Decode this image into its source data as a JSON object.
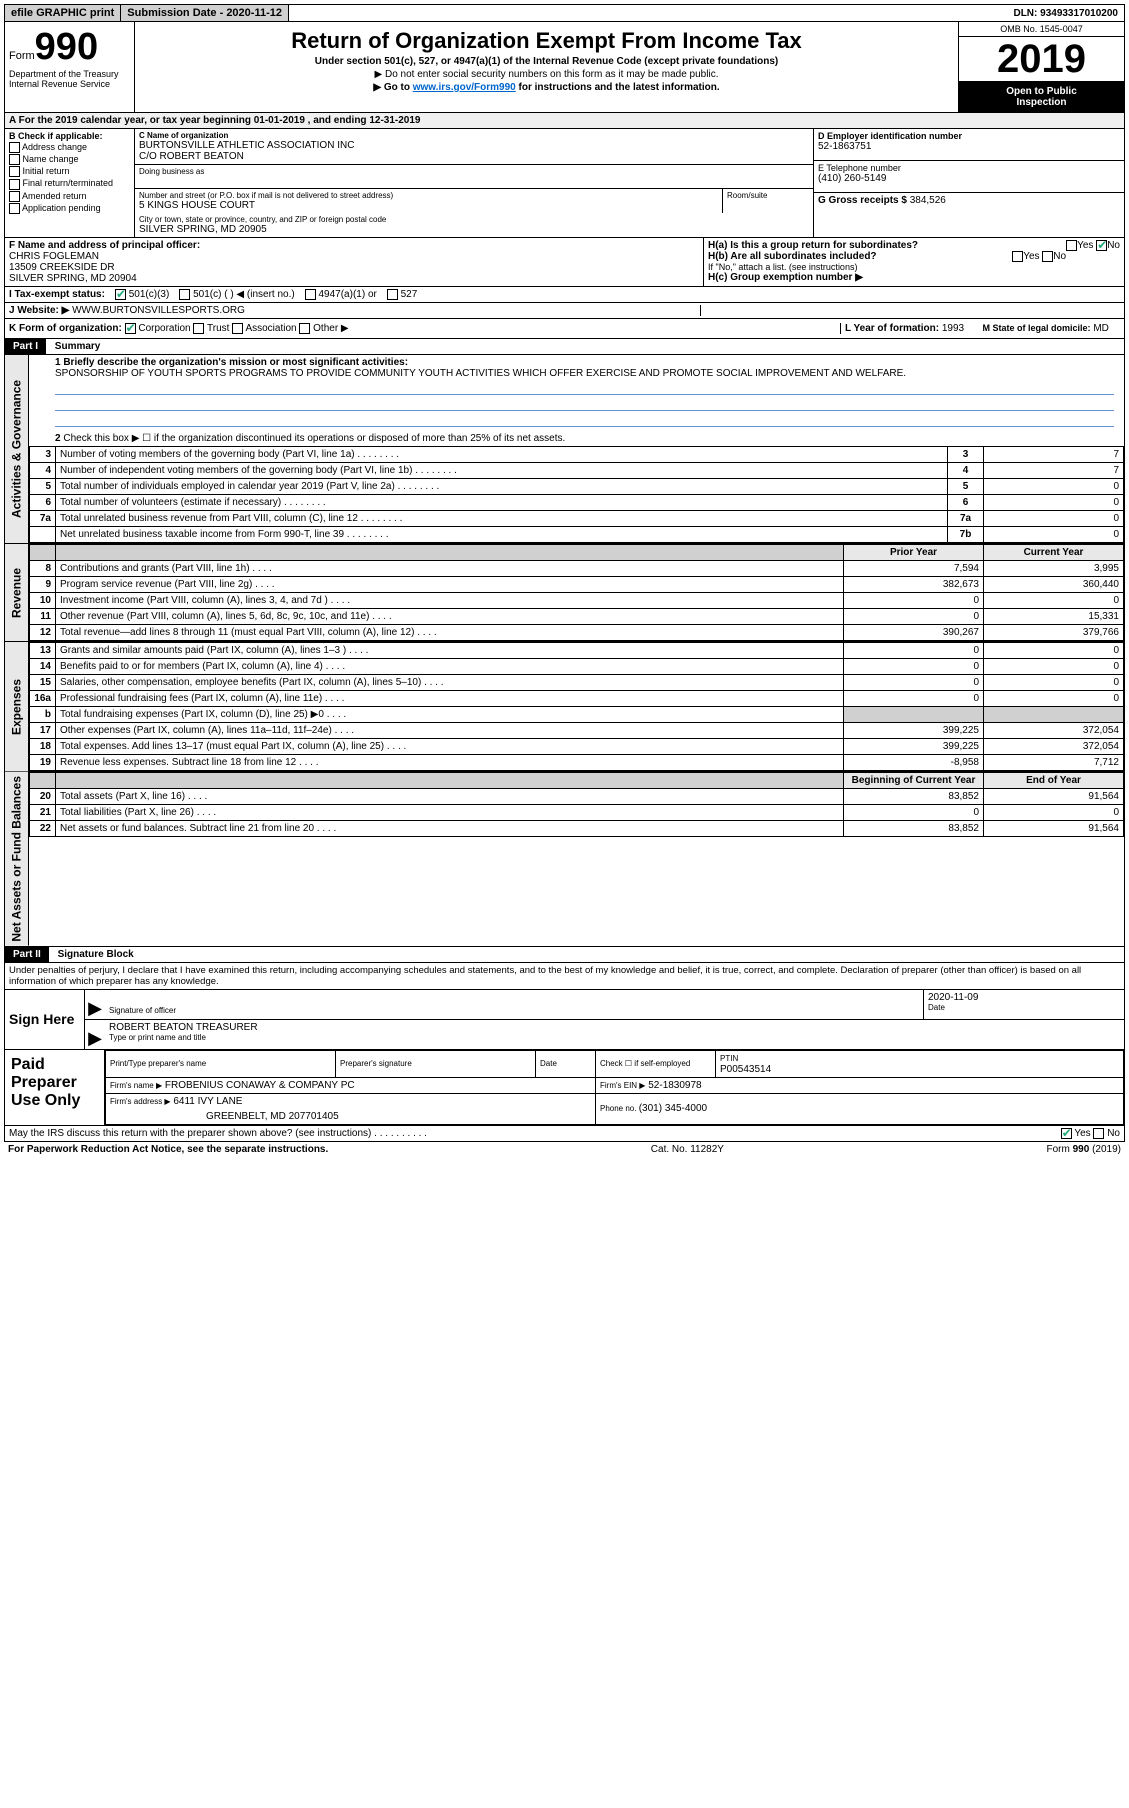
{
  "topbar": {
    "efile": "efile GRAPHIC print",
    "submission_label": "Submission Date - 2020-11-12",
    "dln": "DLN: 93493317010200"
  },
  "header": {
    "form_prefix": "Form",
    "form_number": "990",
    "dept": "Department of the Treasury",
    "irs": "Internal Revenue Service",
    "title": "Return of Organization Exempt From Income Tax",
    "subtitle": "Under section 501(c), 527, or 4947(a)(1) of the Internal Revenue Code (except private foundations)",
    "note1": "Do not enter social security numbers on this form as it may be made public.",
    "note2_pre": "Go to ",
    "note2_link": "www.irs.gov/Form990",
    "note2_post": " for instructions and the latest information.",
    "omb": "OMB No. 1545-0047",
    "year": "2019",
    "inspect1": "Open to Public",
    "inspect2": "Inspection"
  },
  "rowA": "A For the 2019 calendar year, or tax year beginning 01-01-2019   , and ending 12-31-2019",
  "colB": {
    "label": "B Check if applicable:",
    "addr": "Address change",
    "name": "Name change",
    "init": "Initial return",
    "final": "Final return/terminated",
    "amend": "Amended return",
    "app": "Application pending"
  },
  "colC": {
    "name_label": "C Name of organization",
    "name1": "BURTONSVILLE ATHLETIC ASSOCIATION INC",
    "name2": "C/O ROBERT BEATON",
    "dba_label": "Doing business as",
    "addr_label": "Number and street (or P.O. box if mail is not delivered to street address)",
    "addr": "5 KINGS HOUSE COURT",
    "room_label": "Room/suite",
    "city_label": "City or town, state or province, country, and ZIP or foreign postal code",
    "city": "SILVER SPRING, MD  20905"
  },
  "colDE": {
    "D_label": "D Employer identification number",
    "D_val": "52-1863751",
    "E_label": "E Telephone number",
    "E_val": "(410) 260-5149",
    "G_label": "G Gross receipts $ ",
    "G_val": "384,526"
  },
  "F": {
    "label": "F  Name and address of principal officer:",
    "line1": "CHRIS FOGLEMAN",
    "line2": "13509 CREEKSIDE DR",
    "line3": "SILVER SPRING, MD  20904"
  },
  "H": {
    "Ha": "H(a)  Is this a group return for subordinates?",
    "Hb": "H(b)  Are all subordinates included?",
    "Hb_note": "If \"No,\" attach a list. (see instructions)",
    "Hc": "H(c)  Group exemption number ▶",
    "yes": "Yes",
    "no": "No"
  },
  "I": {
    "label": "I  Tax-exempt status:",
    "c3": "501(c)(3)",
    "c": "501(c) (  ) ◀ (insert no.)",
    "a1": "4947(a)(1) or",
    "s527": "527"
  },
  "J": {
    "label": "J  Website: ▶",
    "val": "WWW.BURTONSVILLESPORTS.ORG"
  },
  "K": {
    "label": "K Form of organization:",
    "corp": "Corporation",
    "trust": "Trust",
    "assoc": "Association",
    "other": "Other ▶",
    "L_label": "L Year of formation: ",
    "L_val": "1993",
    "M_label": "M State of legal domicile:",
    "M_val": "MD"
  },
  "part1": {
    "part": "Part I",
    "title": "Summary",
    "line1_label": "1  Briefly describe the organization's mission or most significant activities:",
    "line1_text": "SPONSORSHIP OF YOUTH SPORTS PROGRAMS TO PROVIDE COMMUNITY YOUTH ACTIVITIES WHICH OFFER EXERCISE AND PROMOTE SOCIAL IMPROVEMENT AND WELFARE.",
    "line2": "Check this box ▶ ☐  if the organization discontinued its operations or disposed of more than 25% of its net assets.",
    "tabs": {
      "ag": "Activities & Governance",
      "rev": "Revenue",
      "exp": "Expenses",
      "net": "Net Assets or Fund Balances"
    },
    "ag_rows": [
      {
        "n": "3",
        "label": "Number of voting members of the governing body (Part VI, line 1a)",
        "box": "3",
        "v": "7"
      },
      {
        "n": "4",
        "label": "Number of independent voting members of the governing body (Part VI, line 1b)",
        "box": "4",
        "v": "7"
      },
      {
        "n": "5",
        "label": "Total number of individuals employed in calendar year 2019 (Part V, line 2a)",
        "box": "5",
        "v": "0"
      },
      {
        "n": "6",
        "label": "Total number of volunteers (estimate if necessary)",
        "box": "6",
        "v": "0"
      },
      {
        "n": "7a",
        "label": "Total unrelated business revenue from Part VIII, column (C), line 12",
        "box": "7a",
        "v": "0"
      },
      {
        "n": "",
        "label": "Net unrelated business taxable income from Form 990-T, line 39",
        "box": "7b",
        "v": "0"
      }
    ],
    "prior_hdr": "Prior Year",
    "curr_hdr": "Current Year",
    "rev_rows": [
      {
        "n": "8",
        "label": "Contributions and grants (Part VIII, line 1h)",
        "p": "7,594",
        "c": "3,995"
      },
      {
        "n": "9",
        "label": "Program service revenue (Part VIII, line 2g)",
        "p": "382,673",
        "c": "360,440"
      },
      {
        "n": "10",
        "label": "Investment income (Part VIII, column (A), lines 3, 4, and 7d )",
        "p": "0",
        "c": "0"
      },
      {
        "n": "11",
        "label": "Other revenue (Part VIII, column (A), lines 5, 6d, 8c, 9c, 10c, and 11e)",
        "p": "0",
        "c": "15,331"
      },
      {
        "n": "12",
        "label": "Total revenue—add lines 8 through 11 (must equal Part VIII, column (A), line 12)",
        "p": "390,267",
        "c": "379,766"
      }
    ],
    "exp_rows": [
      {
        "n": "13",
        "label": "Grants and similar amounts paid (Part IX, column (A), lines 1–3 )",
        "p": "0",
        "c": "0"
      },
      {
        "n": "14",
        "label": "Benefits paid to or for members (Part IX, column (A), line 4)",
        "p": "0",
        "c": "0"
      },
      {
        "n": "15",
        "label": "Salaries, other compensation, employee benefits (Part IX, column (A), lines 5–10)",
        "p": "0",
        "c": "0"
      },
      {
        "n": "16a",
        "label": "Professional fundraising fees (Part IX, column (A), line 11e)",
        "p": "0",
        "c": "0"
      },
      {
        "n": "b",
        "label": "Total fundraising expenses (Part IX, column (D), line 25) ▶0",
        "p": "",
        "c": "",
        "grey": true
      },
      {
        "n": "17",
        "label": "Other expenses (Part IX, column (A), lines 11a–11d, 11f–24e)",
        "p": "399,225",
        "c": "372,054"
      },
      {
        "n": "18",
        "label": "Total expenses. Add lines 13–17 (must equal Part IX, column (A), line 25)",
        "p": "399,225",
        "c": "372,054"
      },
      {
        "n": "19",
        "label": "Revenue less expenses. Subtract line 18 from line 12",
        "p": "-8,958",
        "c": "7,712"
      }
    ],
    "beg_hdr": "Beginning of Current Year",
    "end_hdr": "End of Year",
    "net_rows": [
      {
        "n": "20",
        "label": "Total assets (Part X, line 16)",
        "p": "83,852",
        "c": "91,564"
      },
      {
        "n": "21",
        "label": "Total liabilities (Part X, line 26)",
        "p": "0",
        "c": "0"
      },
      {
        "n": "22",
        "label": "Net assets or fund balances. Subtract line 21 from line 20",
        "p": "83,852",
        "c": "91,564"
      }
    ]
  },
  "part2": {
    "part": "Part II",
    "title": "Signature Block",
    "penalty": "Under penalties of perjury, I declare that I have examined this return, including accompanying schedules and statements, and to the best of my knowledge and belief, it is true, correct, and complete. Declaration of preparer (other than officer) is based on all information of which preparer has any knowledge."
  },
  "sign": {
    "here": "Sign Here",
    "sig_label": "Signature of officer",
    "date_label": "Date",
    "date_val": "2020-11-09",
    "name": "ROBERT BEATON  TREASURER",
    "name_label": "Type or print name and title"
  },
  "paid": {
    "label": "Paid Preparer Use Only",
    "col_name": "Print/Type preparer's name",
    "col_sig": "Preparer's signature",
    "col_date": "Date",
    "col_self": "Check ☐ if self-employed",
    "ptin_label": "PTIN",
    "ptin": "P00543514",
    "firm_label": "Firm's name   ▶",
    "firm": "FROBENIUS CONAWAY & COMPANY PC",
    "ein_label": "Firm's EIN ▶",
    "ein": "52-1830978",
    "addr_label": "Firm's address ▶",
    "addr1": "6411 IVY LANE",
    "addr2": "GREENBELT, MD  207701405",
    "phone_label": "Phone no. ",
    "phone": "(301) 345-4000"
  },
  "mayirs": {
    "q": "May the IRS discuss this return with the preparer shown above? (see instructions)",
    "yes": "Yes",
    "no": "No"
  },
  "footer": {
    "left": "For Paperwork Reduction Act Notice, see the separate instructions.",
    "mid": "Cat. No. 11282Y",
    "right_pre": "Form ",
    "right_form": "990",
    "right_post": " (2019)"
  }
}
